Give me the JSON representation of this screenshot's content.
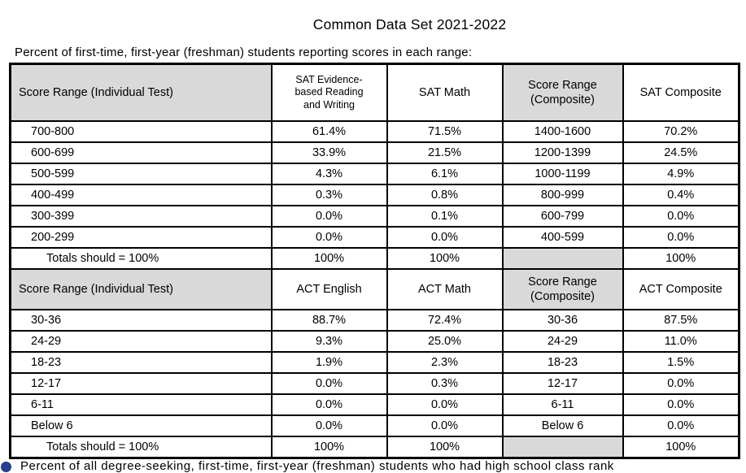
{
  "page": {
    "title": "Common Data Set 2021-2022",
    "caption": "Percent of first-time, first-year (freshman) students reporting scores in each range:",
    "footer_fragment": "Percent of all degree-seeking, first-time, first-year (freshman) students who had high school class rank"
  },
  "colors": {
    "header_cell_gray": "#d9d9d9",
    "table_border": "#000000",
    "text": "#000000",
    "footer_marker_blue": "#27408b"
  },
  "table": {
    "sections": [
      {
        "name": "sat",
        "header": [
          "Score Range (Individual Test)",
          "SAT Evidence-based Reading and Writing",
          "SAT Math",
          "Score Range (Composite)",
          "SAT Composite"
        ],
        "rows": [
          [
            "700-800",
            "61.4%",
            "71.5%",
            "1400-1600",
            "70.2%"
          ],
          [
            "600-699",
            "33.9%",
            "21.5%",
            "1200-1399",
            "24.5%"
          ],
          [
            "500-599",
            "4.3%",
            "6.1%",
            "1000-1199",
            "4.9%"
          ],
          [
            "400-499",
            "0.3%",
            "0.8%",
            "800-999",
            "0.4%"
          ],
          [
            "300-399",
            "0.0%",
            "0.1%",
            "600-799",
            "0.0%"
          ],
          [
            "200-299",
            "0.0%",
            "0.0%",
            "400-599",
            "0.0%"
          ]
        ],
        "totals": [
          "Totals should = 100%",
          "100%",
          "100%",
          "",
          "100%"
        ]
      },
      {
        "name": "act",
        "header": [
          "Score Range (Individual Test)",
          "ACT English",
          "ACT Math",
          "Score Range (Composite)",
          "ACT Composite"
        ],
        "rows": [
          [
            "30-36",
            "88.7%",
            "72.4%",
            "30-36",
            "87.5%"
          ],
          [
            "24-29",
            "9.3%",
            "25.0%",
            "24-29",
            "11.0%"
          ],
          [
            "18-23",
            "1.9%",
            "2.3%",
            "18-23",
            "1.5%"
          ],
          [
            "12-17",
            "0.0%",
            "0.3%",
            "12-17",
            "0.0%"
          ],
          [
            "6-11",
            "0.0%",
            "0.0%",
            "6-11",
            "0.0%"
          ],
          [
            "Below 6",
            "0.0%",
            "0.0%",
            "Below 6",
            "0.0%"
          ]
        ],
        "totals": [
          "Totals should = 100%",
          "100%",
          "100%",
          "",
          "100%"
        ]
      }
    ]
  }
}
